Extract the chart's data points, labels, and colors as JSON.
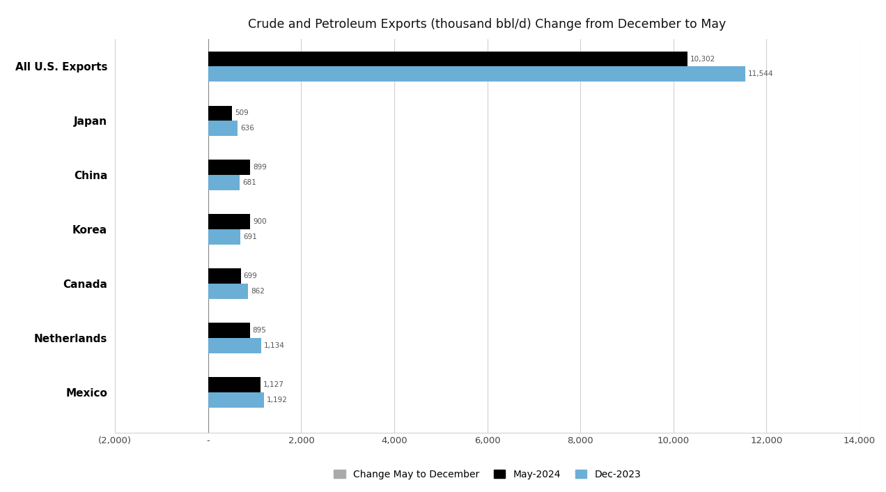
{
  "title": "Crude and Petroleum Exports (thousand bbl/d) Change from December to May",
  "categories": [
    "All U.S. Exports",
    "Japan",
    "China",
    "Korea",
    "Canada",
    "Netherlands",
    "Mexico"
  ],
  "may_2024": [
    10302,
    509,
    899,
    900,
    699,
    895,
    1127
  ],
  "dec_2023": [
    11544,
    636,
    681,
    691,
    862,
    1134,
    1192
  ],
  "may_color": "#000000",
  "dec_color": "#6baed6",
  "change_color": "#aaaaaa",
  "xlim": [
    -2000,
    14000
  ],
  "xticks": [
    -2000,
    0,
    2000,
    4000,
    6000,
    8000,
    10000,
    12000,
    14000
  ],
  "xticklabels": [
    "(2,000)",
    "-",
    "2,000",
    "4,000",
    "6,000",
    "8,000",
    "10,000",
    "12,000",
    "14,000"
  ],
  "legend_labels": [
    "Change May to December",
    "May-2024",
    "Dec-2023"
  ],
  "bar_height": 0.28,
  "figure_bg": "#ffffff",
  "axes_bg": "#ffffff",
  "grid_color": "#d0d0d0"
}
